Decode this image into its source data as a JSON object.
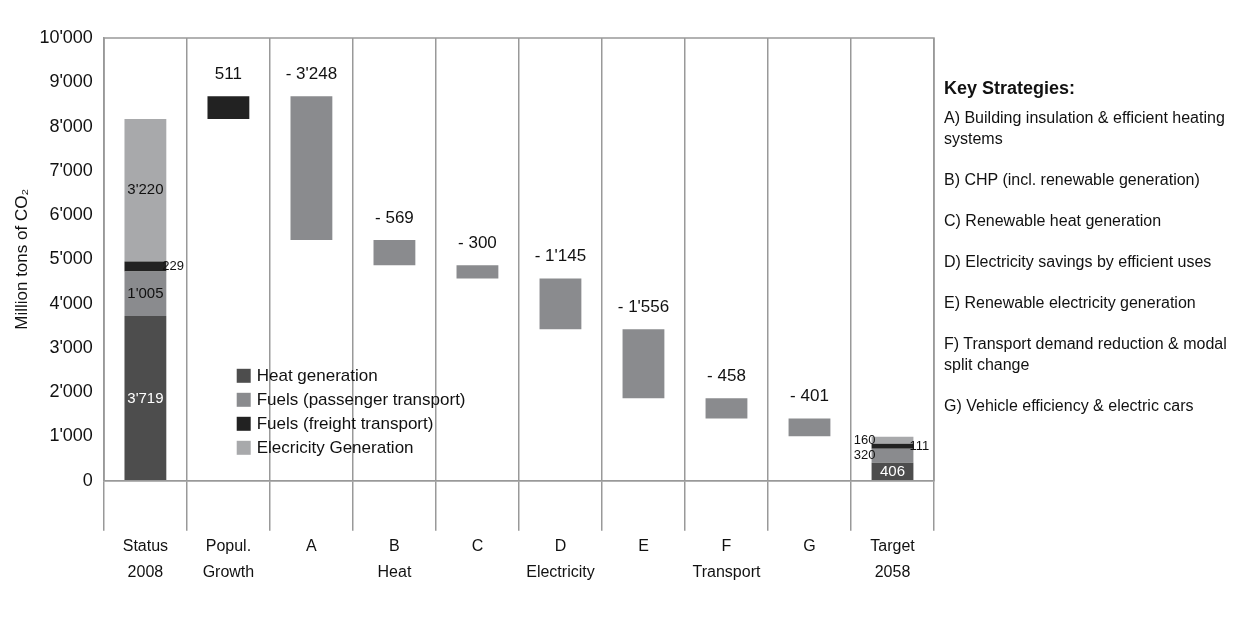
{
  "chart_data": {
    "type": "bar",
    "stacked": true,
    "ylabel": "Million tons of CO₂",
    "categories": [
      "Status\n2008",
      "Popul.\nGrowth",
      "A",
      "B\nHeat",
      "C",
      "D\nElectricity",
      "E",
      "F\nTransport",
      "G",
      "Target\n2058"
    ],
    "ylim": [
      0,
      10000
    ],
    "yticks": [
      0,
      {
        "value": 1000,
        "label": "1'000"
      },
      {
        "value": 2000,
        "label": "2'000"
      },
      {
        "value": 3000,
        "label": "3'000"
      },
      {
        "value": 4000,
        "label": "4'000"
      },
      {
        "value": 5000,
        "label": "5'000"
      },
      {
        "value": 6000,
        "label": "6'000"
      },
      {
        "value": 7000,
        "label": "7'000"
      },
      {
        "value": 8000,
        "label": "8'000"
      },
      {
        "value": 9000,
        "label": "9'000"
      },
      {
        "value": 10000,
        "label": "10'000"
      }
    ],
    "grid": "x",
    "legend": "bottom left",
    "series": [
      {
        "name": "Heat generation",
        "color": "#4d4d4d",
        "values": [
          3719,
          null,
          null,
          null,
          null,
          null,
          null,
          null,
          null,
          406
        ],
        "value_labels": [
          "3'719",
          null,
          null,
          null,
          null,
          null,
          null,
          null,
          null,
          "406"
        ]
      },
      {
        "name": "Fuels (passenger transport)",
        "color": "#8a8b8e",
        "values": [
          1005,
          null,
          null,
          null,
          null,
          null,
          null,
          null,
          null,
          320
        ],
        "value_labels": [
          "1'005",
          null,
          null,
          null,
          null,
          null,
          null,
          null,
          null,
          "320"
        ]
      },
      {
        "name": "Fuels (freight transport)",
        "color": "#222222",
        "values": [
          229,
          null,
          null,
          null,
          null,
          null,
          null,
          null,
          null,
          111
        ],
        "value_labels": [
          "229",
          null,
          null,
          null,
          null,
          null,
          null,
          null,
          null,
          "111"
        ]
      },
      {
        "name": "Elecricity Generation",
        "color": "#a8a9ab",
        "values": [
          3220,
          null,
          null,
          null,
          null,
          null,
          null,
          null,
          null,
          160
        ],
        "value_labels": [
          "3'220",
          null,
          null,
          null,
          null,
          null,
          null,
          null,
          null,
          "160"
        ]
      },
      {
        "colors": [
          "#8a8b8e",
          "#222222",
          "#8a8b8e",
          "#8a8b8e",
          "#8a8b8e",
          "#8a8b8e",
          "#8a8b8e",
          "#8a8b8e",
          "#8a8b8e",
          "#8a8b8e"
        ],
        "values": [
          null,
          511,
          -3248,
          -569,
          -300,
          -1145,
          -1556,
          -458,
          -401,
          null
        ],
        "base": [
          null,
          8173,
          8684,
          5436,
          4867,
          4567,
          3422,
          1866,
          1408,
          null
        ],
        "value_labels": [
          null,
          "511",
          "- 3'248",
          "- 569",
          "- 300",
          "- 1'145",
          "- 1'556",
          "- 458",
          "- 401",
          null
        ]
      }
    ],
    "annotations": [
      "Key Strategies:",
      "A) Building insulation & efficient heating systems",
      "B) CHP (incl. renewable generation)",
      "C) Renewable heat generation",
      "D) Electricity savings by efficient uses",
      "E) Renewable electricity generation",
      "F) Transport demand reduction & modal split change",
      "G) Vehicle efficiency & electric cars"
    ]
  }
}
